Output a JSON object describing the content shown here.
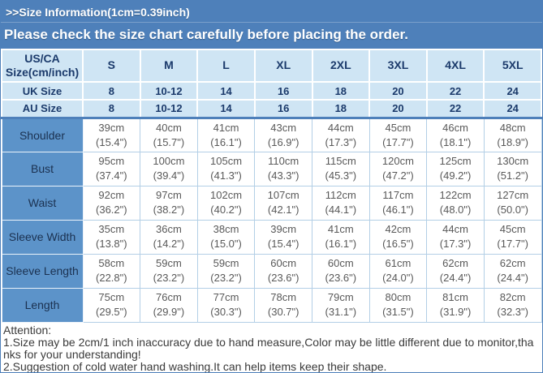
{
  "colors": {
    "banner_blue": "#4e80ba",
    "header_light_blue": "#cfe5f4",
    "label_blue": "#5c93c9",
    "navy_text": "#1b3a6b",
    "body_text_gray": "#595959"
  },
  "topbar": {
    "title": ">>Size Information(1cm=0.39inch)",
    "banner": "Please check the size chart carefully before placing the order."
  },
  "size_table": {
    "header": [
      "US/CA Size(cm/inch)",
      "S",
      "M",
      "L",
      "XL",
      "2XL",
      "3XL",
      "4XL",
      "5XL"
    ],
    "size_rows": [
      {
        "label": "UK Size",
        "values": [
          "8",
          "10-12",
          "14",
          "16",
          "18",
          "20",
          "22",
          "24"
        ]
      },
      {
        "label": "AU Size",
        "values": [
          "8",
          "10-12",
          "14",
          "16",
          "18",
          "20",
          "22",
          "24"
        ]
      }
    ],
    "measurements": [
      {
        "label": "Shoulder",
        "values": [
          {
            "cm": "39cm",
            "inch": "(15.4\")"
          },
          {
            "cm": "40cm",
            "inch": "(15.7\")"
          },
          {
            "cm": "41cm",
            "inch": "(16.1\")"
          },
          {
            "cm": "43cm",
            "inch": "(16.9\")"
          },
          {
            "cm": "44cm",
            "inch": "(17.3\")"
          },
          {
            "cm": "45cm",
            "inch": "(17.7\")"
          },
          {
            "cm": "46cm",
            "inch": "(18.1\")"
          },
          {
            "cm": "48cm",
            "inch": "(18.9\")"
          }
        ]
      },
      {
        "label": "Bust",
        "values": [
          {
            "cm": "95cm",
            "inch": "(37.4\")"
          },
          {
            "cm": "100cm",
            "inch": "(39.4\")"
          },
          {
            "cm": "105cm",
            "inch": "(41.3\")"
          },
          {
            "cm": "110cm",
            "inch": "(43.3\")"
          },
          {
            "cm": "115cm",
            "inch": "(45.3\")"
          },
          {
            "cm": "120cm",
            "inch": "(47.2\")"
          },
          {
            "cm": "125cm",
            "inch": "(49.2\")"
          },
          {
            "cm": "130cm",
            "inch": "(51.2\")"
          }
        ]
      },
      {
        "label": "Waist",
        "values": [
          {
            "cm": "92cm",
            "inch": "(36.2\")"
          },
          {
            "cm": "97cm",
            "inch": "(38.2\")"
          },
          {
            "cm": "102cm",
            "inch": "(40.2\")"
          },
          {
            "cm": "107cm",
            "inch": "(42.1\")"
          },
          {
            "cm": "112cm",
            "inch": "(44.1\")"
          },
          {
            "cm": "117cm",
            "inch": "(46.1\")"
          },
          {
            "cm": "122cm",
            "inch": "(48.0\")"
          },
          {
            "cm": "127cm",
            "inch": "(50.0\")"
          }
        ]
      },
      {
        "label": "Sleeve Width",
        "values": [
          {
            "cm": "35cm",
            "inch": "(13.8\")"
          },
          {
            "cm": "36cm",
            "inch": "(14.2\")"
          },
          {
            "cm": "38cm",
            "inch": "(15.0\")"
          },
          {
            "cm": "39cm",
            "inch": "(15.4\")"
          },
          {
            "cm": "41cm",
            "inch": "(16.1\")"
          },
          {
            "cm": "42cm",
            "inch": "(16.5\")"
          },
          {
            "cm": "44cm",
            "inch": "(17.3\")"
          },
          {
            "cm": "45cm",
            "inch": "(17.7\")"
          }
        ]
      },
      {
        "label": "Sleeve Length",
        "values": [
          {
            "cm": "58cm",
            "inch": "(22.8\")"
          },
          {
            "cm": "59cm",
            "inch": "(23.2\")"
          },
          {
            "cm": "59cm",
            "inch": "(23.2\")"
          },
          {
            "cm": "60cm",
            "inch": "(23.6\")"
          },
          {
            "cm": "60cm",
            "inch": "(23.6\")"
          },
          {
            "cm": "61cm",
            "inch": "(24.0\")"
          },
          {
            "cm": "62cm",
            "inch": "(24.4\")"
          },
          {
            "cm": "62cm",
            "inch": "(24.4\")"
          }
        ]
      },
      {
        "label": "Length",
        "values": [
          {
            "cm": "75cm",
            "inch": "(29.5\")"
          },
          {
            "cm": "76cm",
            "inch": "(29.9\")"
          },
          {
            "cm": "77cm",
            "inch": "(30.3\")"
          },
          {
            "cm": "78cm",
            "inch": "(30.7\")"
          },
          {
            "cm": "79cm",
            "inch": "(31.1\")"
          },
          {
            "cm": "80cm",
            "inch": "(31.5\")"
          },
          {
            "cm": "81cm",
            "inch": "(31.9\")"
          },
          {
            "cm": "82cm",
            "inch": "(32.3\")"
          }
        ]
      }
    ]
  },
  "attention": {
    "heading": "Attention:",
    "notes": [
      "1.Size may be 2cm/1 inch inaccuracy due to hand measure,Color may be little different due to monitor,thanks for your understanding!",
      "2.Suggestion of cold water hand washing.It can help items keep their shape."
    ]
  },
  "chart_data": {
    "type": "table",
    "title": ">>Size Information(1cm=0.39inch)",
    "subtitle": "Please check the size chart carefully before placing the order.",
    "columns": [
      "US/CA Size(cm/inch)",
      "S",
      "M",
      "L",
      "XL",
      "2XL",
      "3XL",
      "4XL",
      "5XL"
    ],
    "rows": [
      [
        "UK Size",
        "8",
        "10-12",
        "14",
        "16",
        "18",
        "20",
        "22",
        "24"
      ],
      [
        "AU Size",
        "8",
        "10-12",
        "14",
        "16",
        "18",
        "20",
        "22",
        "24"
      ],
      [
        "Shoulder",
        "39cm (15.4\")",
        "40cm (15.7\")",
        "41cm (16.1\")",
        "43cm (16.9\")",
        "44cm (17.3\")",
        "45cm (17.7\")",
        "46cm (18.1\")",
        "48cm (18.9\")"
      ],
      [
        "Bust",
        "95cm (37.4\")",
        "100cm (39.4\")",
        "105cm (41.3\")",
        "110cm (43.3\")",
        "115cm (45.3\")",
        "120cm (47.2\")",
        "125cm (49.2\")",
        "130cm (51.2\")"
      ],
      [
        "Waist",
        "92cm (36.2\")",
        "97cm (38.2\")",
        "102cm (40.2\")",
        "107cm (42.1\")",
        "112cm (44.1\")",
        "117cm (46.1\")",
        "122cm (48.0\")",
        "127cm (50.0\")"
      ],
      [
        "Sleeve Width",
        "35cm (13.8\")",
        "36cm (14.2\")",
        "38cm (15.0\")",
        "39cm (15.4\")",
        "41cm (16.1\")",
        "42cm (16.5\")",
        "44cm (17.3\")",
        "45cm (17.7\")"
      ],
      [
        "Sleeve Length",
        "58cm (22.8\")",
        "59cm (23.2\")",
        "59cm (23.2\")",
        "60cm (23.6\")",
        "60cm (23.6\")",
        "61cm (24.0\")",
        "62cm (24.4\")",
        "62cm (24.4\")"
      ],
      [
        "Length",
        "75cm (29.5\")",
        "76cm (29.9\")",
        "77cm (30.3\")",
        "78cm (30.7\")",
        "79cm (31.1\")",
        "80cm (31.5\")",
        "81cm (31.9\")",
        "82cm (32.3\")"
      ]
    ]
  }
}
